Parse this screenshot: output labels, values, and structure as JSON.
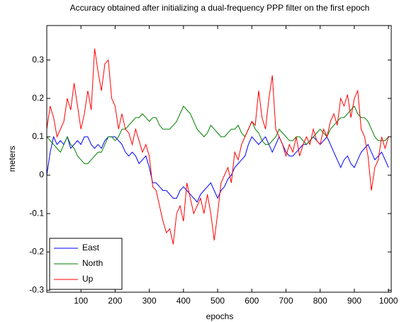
{
  "chart_data": {
    "type": "line",
    "title": "Accuracy obtained after initializing a dual-frequency PPP filter on the first epoch",
    "x_label": "epochs",
    "y_label": "meters",
    "x": [
      0,
      10,
      20,
      30,
      40,
      50,
      60,
      70,
      80,
      90,
      100,
      110,
      120,
      130,
      140,
      150,
      160,
      170,
      180,
      190,
      200,
      210,
      220,
      230,
      240,
      250,
      260,
      270,
      280,
      290,
      300,
      310,
      320,
      330,
      340,
      350,
      360,
      370,
      380,
      390,
      400,
      410,
      420,
      430,
      440,
      450,
      460,
      470,
      480,
      490,
      500,
      510,
      520,
      530,
      540,
      550,
      560,
      570,
      580,
      590,
      600,
      610,
      620,
      630,
      640,
      650,
      660,
      670,
      680,
      690,
      700,
      710,
      720,
      730,
      740,
      750,
      760,
      770,
      780,
      790,
      800,
      810,
      820,
      830,
      840,
      850,
      860,
      870,
      880,
      890,
      900,
      910,
      920,
      930,
      940,
      950,
      960,
      970,
      980,
      990,
      1000
    ],
    "series": [
      {
        "name": "East",
        "color": "#0000ff",
        "values": [
          0,
          0.06,
          0.1,
          0.08,
          0.09,
          0.08,
          0.1,
          0.07,
          0.08,
          0.09,
          0.08,
          0.1,
          0.1,
          0.08,
          0.07,
          0.08,
          0.07,
          0.09,
          0.1,
          0.1,
          0.1,
          0.09,
          0.08,
          0.06,
          0.05,
          0.06,
          0.05,
          0.03,
          0.04,
          0.05,
          0.02,
          -0.02,
          -0.02,
          -0.03,
          -0.04,
          -0.04,
          -0.05,
          -0.06,
          -0.06,
          -0.04,
          -0.03,
          -0.04,
          -0.05,
          -0.06,
          -0.07,
          -0.05,
          -0.04,
          -0.03,
          -0.02,
          -0.04,
          -0.06,
          -0.04,
          -0.03,
          -0.01,
          0,
          0.02,
          0.03,
          0.04,
          0.05,
          0.08,
          0.1,
          0.09,
          0.08,
          0.09,
          0.1,
          0.08,
          0.06,
          0.08,
          0.1,
          0.08,
          0.06,
          0.05,
          0.05,
          0.06,
          0.07,
          0.08,
          0.08,
          0.09,
          0.1,
          0.09,
          0.08,
          0.09,
          0.1,
          0.08,
          0.06,
          0.04,
          0.02,
          0.04,
          0.05,
          0.03,
          0.02,
          0.04,
          0.06,
          0.07,
          0.08,
          0.06,
          0.04,
          0.05,
          0.06,
          0.04,
          0.02
        ]
      },
      {
        "name": "North",
        "color": "#008000",
        "values": [
          0.1,
          0.09,
          0.08,
          0.07,
          0.06,
          0.08,
          0.1,
          0.08,
          0.07,
          0.05,
          0.04,
          0.03,
          0.03,
          0.04,
          0.05,
          0.06,
          0.06,
          0.08,
          0.1,
          0.1,
          0.09,
          0.1,
          0.12,
          0.12,
          0.13,
          0.14,
          0.15,
          0.15,
          0.16,
          0.15,
          0.14,
          0.15,
          0.15,
          0.13,
          0.12,
          0.12,
          0.12,
          0.13,
          0.14,
          0.16,
          0.18,
          0.17,
          0.16,
          0.14,
          0.12,
          0.11,
          0.1,
          0.11,
          0.13,
          0.12,
          0.11,
          0.1,
          0.1,
          0.11,
          0.12,
          0.12,
          0.13,
          0.11,
          0.1,
          0.12,
          0.14,
          0.12,
          0.11,
          0.09,
          0.08,
          0.08,
          0.09,
          0.1,
          0.12,
          0.11,
          0.1,
          0.09,
          0.09,
          0.1,
          0.1,
          0.09,
          0.08,
          0.09,
          0.1,
          0.11,
          0.12,
          0.11,
          0.1,
          0.12,
          0.13,
          0.14,
          0.15,
          0.15,
          0.16,
          0.17,
          0.18,
          0.16,
          0.15,
          0.15,
          0.14,
          0.12,
          0.1,
          0.09,
          0.09,
          0.09,
          0.1
        ]
      },
      {
        "name": "Up",
        "color": "#ff0000",
        "values": [
          0.12,
          0.18,
          0.15,
          0.1,
          0.12,
          0.14,
          0.2,
          0.17,
          0.24,
          0.18,
          0.12,
          0.16,
          0.22,
          0.17,
          0.33,
          0.27,
          0.22,
          0.29,
          0.3,
          0.2,
          0.18,
          0.12,
          0.16,
          0.12,
          0.11,
          0.08,
          0.12,
          0.09,
          0.06,
          0.08,
          0.05,
          -0.03,
          -0.04,
          -0.08,
          -0.12,
          -0.15,
          -0.14,
          -0.18,
          -0.1,
          -0.08,
          -0.12,
          -0.02,
          -0.06,
          -0.1,
          -0.08,
          -0.06,
          -0.1,
          -0.05,
          -0.1,
          -0.17,
          -0.1,
          -0.02,
          0,
          0.02,
          -0.02,
          0.06,
          0.04,
          0.08,
          0.1,
          0.12,
          0.14,
          0.13,
          0.22,
          0.15,
          0.12,
          0.2,
          0.26,
          0.12,
          0.1,
          0.08,
          0.05,
          0.08,
          0.06,
          0.1,
          0.05,
          0.08,
          0.1,
          0.08,
          0.12,
          0.09,
          0.08,
          0.12,
          0.1,
          0.14,
          0.16,
          0.13,
          0.2,
          0.18,
          0.21,
          0.15,
          0.2,
          0.22,
          0.12,
          0.1,
          0.05,
          -0.04,
          0.02,
          0.04,
          0.1,
          0.07,
          0.1
        ]
      }
    ],
    "xlim": [
      0,
      1008
    ],
    "ylim": [
      -0.305,
      0.39
    ],
    "xticks": [
      100,
      200,
      300,
      400,
      500,
      600,
      700,
      800,
      900,
      1000
    ],
    "yticks": [
      -0.3,
      -0.2,
      -0.1,
      0,
      0.1,
      0.2,
      0.3
    ],
    "grid": false,
    "legend": "lower-left"
  }
}
